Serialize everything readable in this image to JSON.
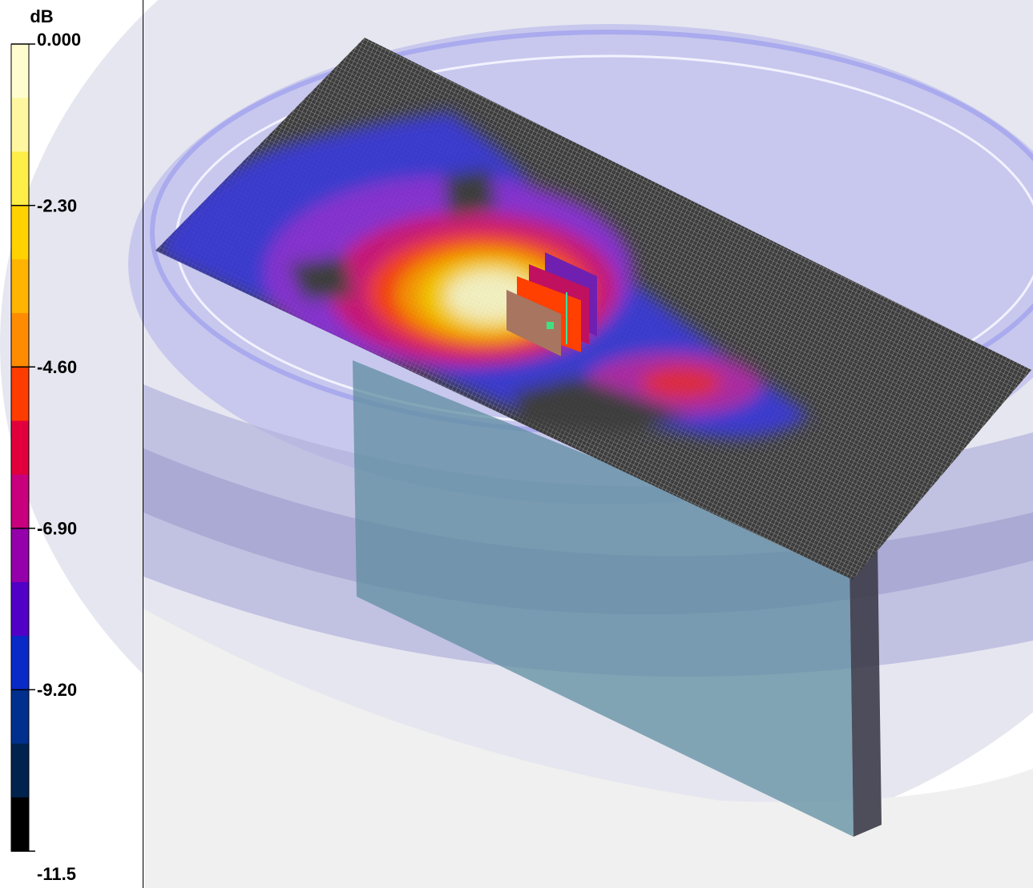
{
  "colorbar": {
    "unit": "dB",
    "range": [
      -11.5,
      0
    ],
    "ticks": [
      {
        "value": 0,
        "label": "0.000"
      },
      {
        "value": -2.3,
        "label": "-2.30"
      },
      {
        "value": -4.6,
        "label": "-4.60"
      },
      {
        "value": -6.9,
        "label": "-6.90"
      },
      {
        "value": -9.2,
        "label": "-9.20"
      },
      -11.5
    ],
    "colors": [
      "#fffdd0",
      "#fff7a0",
      "#ffee48",
      "#ffd200",
      "#ffb400",
      "#ff8c00",
      "#ff3c00",
      "#e2003c",
      "#c8007e",
      "#9400aa",
      "#5200c8",
      "#0a2ac8",
      "#00308e",
      "#00224e",
      "#000000"
    ]
  }
}
